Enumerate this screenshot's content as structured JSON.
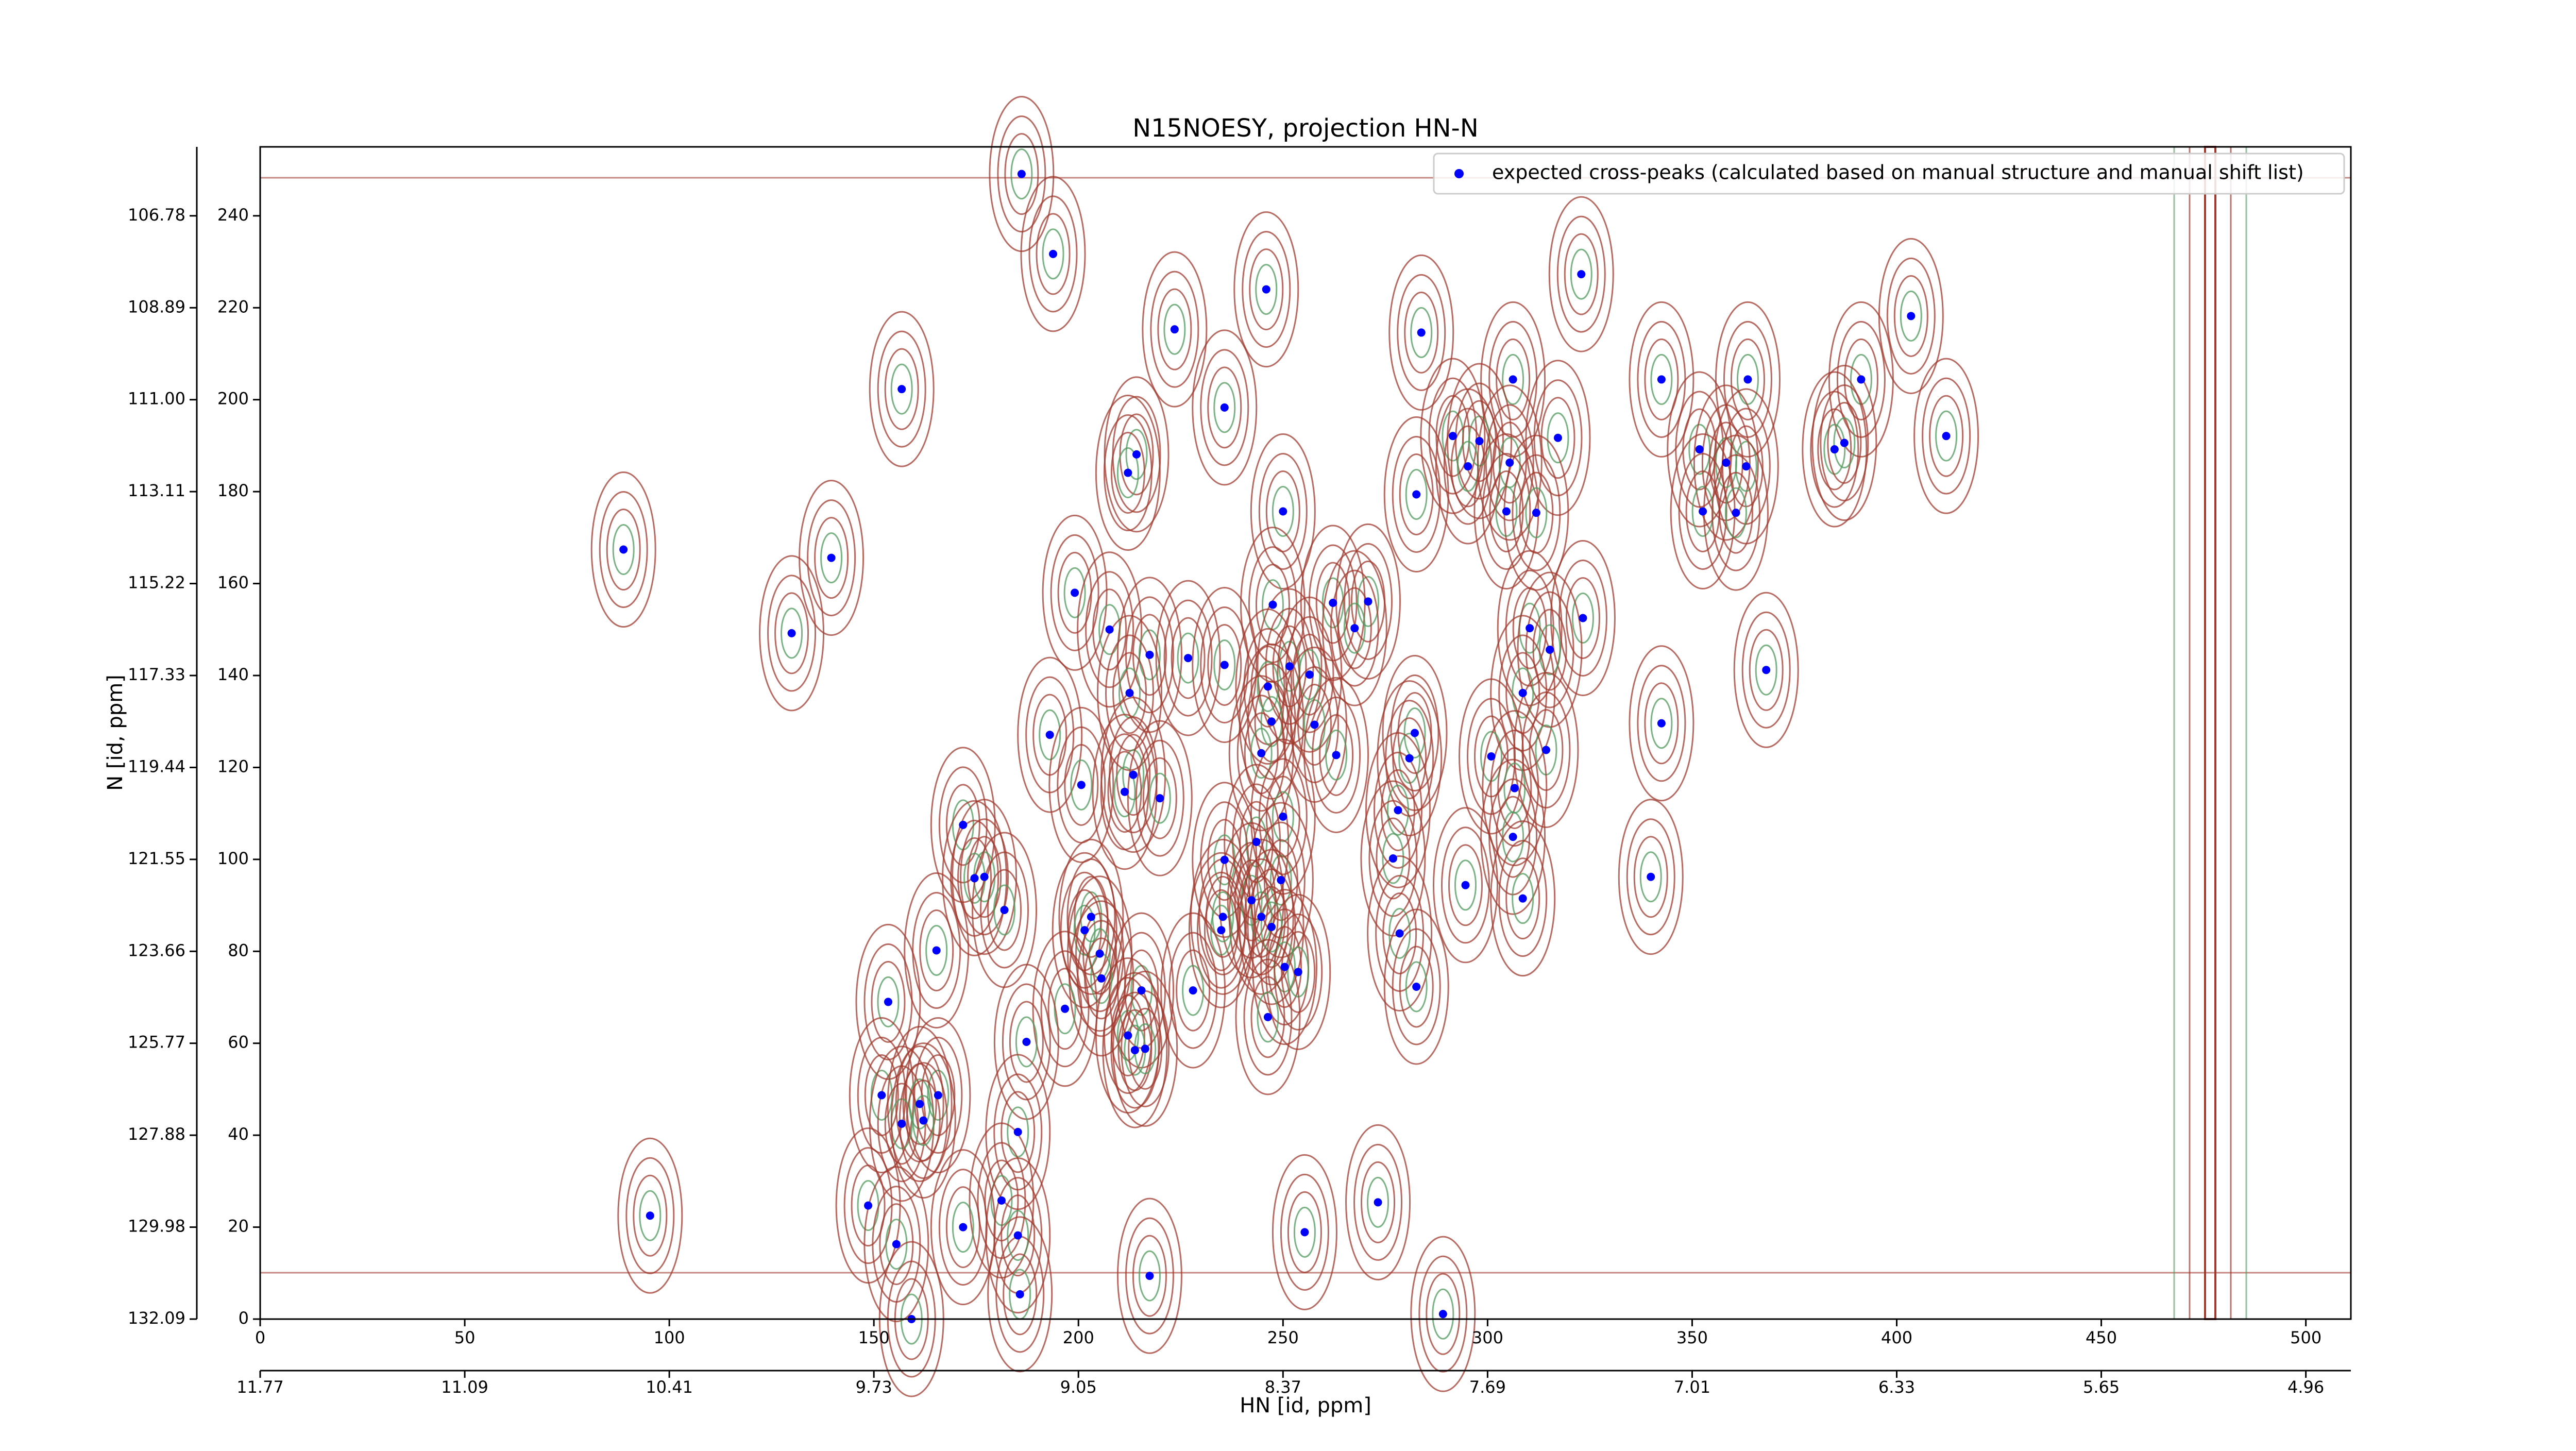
{
  "chart_data": {
    "type": "scatter",
    "title": "N15NOESY, projection HN-N",
    "xlabel": "HN [id, ppm]",
    "ylabel": "N [id, ppm]",
    "xlim": [
      0,
      511
    ],
    "ylim": [
      0,
      255
    ],
    "xticks": [
      0,
      50,
      100,
      150,
      200,
      250,
      300,
      350,
      400,
      450,
      500
    ],
    "yticks": [
      0,
      20,
      40,
      60,
      80,
      100,
      120,
      140,
      160,
      180,
      200,
      220,
      240
    ],
    "x2ticks": [
      {
        "value": 0,
        "label": "11.77"
      },
      {
        "value": 50,
        "label": "11.09"
      },
      {
        "value": 100,
        "label": "10.41"
      },
      {
        "value": 150,
        "label": "9.73"
      },
      {
        "value": 200,
        "label": "9.05"
      },
      {
        "value": 250,
        "label": "8.37"
      },
      {
        "value": 300,
        "label": "7.69"
      },
      {
        "value": 350,
        "label": "7.01"
      },
      {
        "value": 400,
        "label": "6.33"
      },
      {
        "value": 450,
        "label": "5.65"
      },
      {
        "value": 500,
        "label": "4.96"
      }
    ],
    "y2ticks": [
      {
        "value": 0,
        "label": "132.09"
      },
      {
        "value": 20,
        "label": "129.98"
      },
      {
        "value": 40,
        "label": "127.88"
      },
      {
        "value": 60,
        "label": "125.77"
      },
      {
        "value": 80,
        "label": "123.66"
      },
      {
        "value": 100,
        "label": "121.55"
      },
      {
        "value": 120,
        "label": "119.44"
      },
      {
        "value": 140,
        "label": "117.33"
      },
      {
        "value": 160,
        "label": "115.22"
      },
      {
        "value": 180,
        "label": "113.11"
      },
      {
        "value": 200,
        "label": "111.00"
      },
      {
        "value": 220,
        "label": "108.89"
      },
      {
        "value": 240,
        "label": "106.78"
      }
    ],
    "legend": "upper right",
    "contour_colors": [
      "#a0392e",
      "#4f9a5c"
    ],
    "series": [
      {
        "name": "expected cross-peaks (calculated based on manual structure and manual shift list)",
        "color": "#0000ff",
        "x": [
          186.1,
          193.8,
          245.9,
          223.5,
          283.8,
          322.9,
          403.5,
          156.8,
          235.7,
          306.2,
          342.5,
          363.6,
          391.3,
          291.5,
          298.0,
          295.2,
          305.4,
          317.2,
          214.2,
          212.1,
          351.8,
          358.3,
          363.2,
          384.8,
          387.2,
          412.1,
          282.6,
          250.0,
          304.6,
          311.9,
          352.6,
          360.7,
          88.8,
          139.6,
          199.1,
          247.5,
          262.2,
          270.8,
          267.5,
          129.9,
          207.6,
          310.3,
          323.3,
          315.2,
          217.4,
          226.8,
          235.7,
          251.6,
          256.5,
          246.3,
          212.5,
          368.1,
          308.6,
          193.0,
          247.2,
          257.7,
          282.2,
          342.5,
          244.7,
          263.0,
          280.9,
          300.9,
          314.3,
          200.7,
          213.4,
          211.3,
          219.9,
          306.6,
          250.0,
          278.1,
          171.8,
          306.2,
          243.5,
          235.7,
          276.9,
          174.6,
          177.0,
          249.5,
          294.6,
          339.9,
          181.9,
          203.1,
          242.3,
          235.3,
          244.7,
          308.6,
          201.5,
          234.9,
          247.2,
          165.3,
          205.2,
          278.5,
          250.4,
          253.7,
          205.6,
          228.0,
          215.4,
          282.6,
          196.7,
          153.5,
          246.3,
          187.3,
          212.1,
          213.8,
          216.3,
          151.9,
          165.7,
          161.2,
          156.8,
          162.1,
          185.2,
          148.6,
          273.2,
          95.3,
          181.2,
          171.8,
          185.2,
          255.3,
          155.5,
          217.4,
          185.7,
          159.2,
          289.1
        ],
        "y": [
          249.1,
          231.7,
          224.0,
          215.3,
          214.6,
          227.3,
          218.2,
          202.3,
          198.3,
          204.4,
          204.4,
          204.4,
          204.4,
          192.1,
          191.0,
          185.5,
          186.3,
          191.7,
          188.1,
          184.1,
          189.2,
          186.3,
          185.5,
          189.2,
          190.6,
          192.1,
          179.4,
          175.7,
          175.7,
          175.4,
          175.7,
          175.4,
          167.4,
          165.6,
          158.0,
          155.4,
          155.8,
          156.1,
          150.3,
          149.2,
          150.0,
          150.3,
          152.5,
          145.6,
          144.5,
          143.8,
          142.3,
          142.0,
          140.2,
          137.6,
          136.2,
          141.2,
          136.2,
          127.1,
          130.0,
          129.3,
          127.5,
          129.6,
          123.1,
          122.7,
          122.0,
          122.4,
          123.8,
          116.2,
          118.4,
          114.7,
          113.3,
          115.5,
          109.3,
          110.7,
          107.5,
          104.9,
          103.8,
          99.9,
          100.2,
          95.9,
          96.2,
          95.5,
          94.4,
          96.2,
          89.0,
          87.5,
          91.1,
          87.5,
          87.5,
          91.5,
          84.6,
          84.6,
          85.3,
          80.2,
          79.5,
          83.9,
          76.6,
          75.5,
          74.1,
          71.5,
          71.5,
          72.3,
          67.5,
          69.0,
          65.7,
          60.3,
          61.7,
          58.5,
          58.8,
          48.7,
          48.7,
          46.8,
          42.5,
          43.2,
          40.7,
          24.7,
          25.4,
          22.5,
          25.8,
          20.0,
          18.2,
          18.9,
          16.3,
          9.4,
          5.4,
          0,
          1.1
        ]
      }
    ]
  }
}
